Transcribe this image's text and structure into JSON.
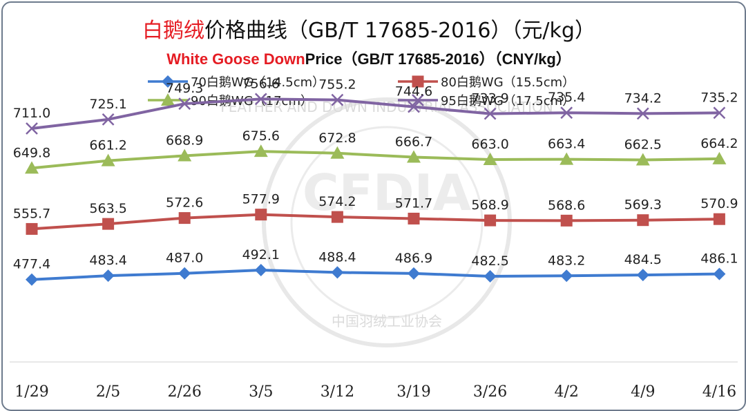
{
  "colors": {
    "title_accent": "#e51c23",
    "title_main": "#111111",
    "series": [
      "#3f7bd0",
      "#c0504d",
      "#9bbb59",
      "#8064a2"
    ]
  },
  "title": {
    "cn_accent": "白鹅绒",
    "cn_rest": "价格曲线（GB/T 17685-2016）（元/kg）",
    "en_accent": "White Goose Down",
    "en_rest": "Price（GB/T 17685-2016）（CNY/kg）"
  },
  "watermark": {
    "logo": "CFDIA",
    "text_cn": "中国羽绒工业协会",
    "text_en": "FEATHER AND DOWN INDUSTRIAL ASSOCIATION"
  },
  "chart_data": {
    "type": "line",
    "categories": [
      "1/29",
      "2/5",
      "2/26",
      "3/5",
      "3/12",
      "3/19",
      "3/26",
      "4/2",
      "4/9",
      "4/16"
    ],
    "series": [
      {
        "name": "70白鹅WG（14.5cm）",
        "marker": "diamond",
        "values": [
          477.4,
          483.4,
          487.0,
          492.1,
          488.4,
          486.9,
          482.5,
          483.2,
          484.5,
          486.1
        ]
      },
      {
        "name": "80白鹅WG（15.5cm）",
        "marker": "square",
        "values": [
          555.7,
          563.5,
          572.6,
          577.9,
          574.2,
          571.7,
          568.9,
          568.6,
          569.3,
          570.9
        ]
      },
      {
        "name": "90白鹅WG（17cm）",
        "marker": "triangle",
        "values": [
          649.8,
          661.2,
          668.9,
          675.6,
          672.8,
          666.7,
          663.0,
          663.4,
          662.5,
          664.2
        ]
      },
      {
        "name": "95白鹅WG（17.5cm）",
        "marker": "x",
        "values": [
          711.0,
          725.1,
          749.3,
          756.6,
          755.2,
          744.6,
          733.9,
          735.4,
          734.2,
          735.2
        ]
      }
    ],
    "labels": [
      [
        "477.4",
        "483.4",
        "487.0",
        "492.1",
        "488.4",
        "486.9",
        "482.5",
        "483.2",
        "484.5",
        "486.1"
      ],
      [
        "555.7",
        "563.5",
        "572.6",
        "577.9",
        "574.2",
        "571.7",
        "568.9",
        "568.6",
        "569.3",
        "570.9"
      ],
      [
        "649.8",
        "661.2",
        "668.9",
        "675.6",
        "672.8",
        "666.7",
        "663.0",
        "663.4",
        "662.5",
        "664.2"
      ],
      [
        "711.0",
        "725.1",
        "749.3",
        "756.6",
        "755.2",
        "744.6",
        "733.9",
        "735.4",
        "734.2",
        "735.2"
      ]
    ],
    "ylim": [
      350,
      820
    ],
    "grid": false,
    "legend_position": "top"
  }
}
